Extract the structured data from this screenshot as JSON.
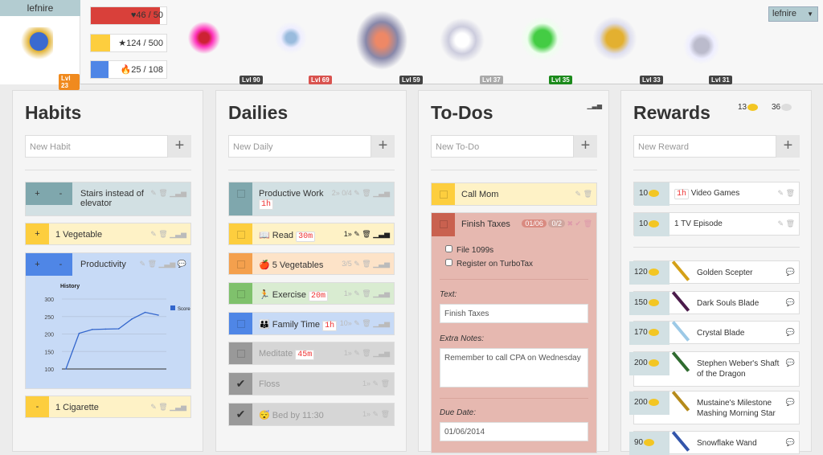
{
  "header": {
    "username": "lefnire",
    "level": "Lvl 23",
    "hp": "46 / 50",
    "hp_fraction": 0.92,
    "xp": "124 / 500",
    "xp_fraction": 0.248,
    "mp": "25 / 108",
    "mp_fraction": 0.23,
    "profile_menu": "lefnire",
    "party_levels": [
      "Lvl 90",
      "Lvl 69",
      "Lvl 59",
      "Lvl 37",
      "Lvl 35",
      "Lvl 33",
      "Lvl 31"
    ]
  },
  "habits": {
    "title": "Habits",
    "placeholder": "New Habit",
    "items": [
      {
        "text": "Stairs instead of elevator"
      },
      {
        "text": "1 Vegetable"
      },
      {
        "text": "Productivity"
      },
      {
        "text": "1 Cigarette"
      }
    ],
    "plus": "+",
    "minus": "-"
  },
  "chart_data": {
    "type": "line",
    "title": "History",
    "series": [
      {
        "name": "Score",
        "values": [
          100,
          202,
          213,
          214,
          215,
          243,
          262,
          254
        ]
      }
    ],
    "yticks": [
      "300",
      "250",
      "200",
      "150",
      "100"
    ],
    "ylim": [
      100,
      300
    ],
    "grid": true,
    "legend": "right"
  },
  "dailies": {
    "title": "Dailies",
    "placeholder": "New Daily",
    "items": [
      {
        "text": "Productive Work",
        "tag": "1h",
        "meta": "2» 0/4"
      },
      {
        "text": "📖 Read",
        "tag": "30m",
        "meta": "1»"
      },
      {
        "text": "🍎 5 Vegetables",
        "tag": "",
        "meta": "3/5"
      },
      {
        "text": "🏃 Exercise",
        "tag": "20m",
        "meta": "1»"
      },
      {
        "text": "👪 Family Time",
        "tag": "1h",
        "meta": "10»"
      },
      {
        "text": "Meditate",
        "tag": "45m",
        "meta": "1»"
      },
      {
        "text": "Floss",
        "tag": "",
        "meta": "1»"
      },
      {
        "text": "😴 Bed by 11:30",
        "tag": "",
        "meta": "1»"
      }
    ]
  },
  "todos": {
    "title": "To-Dos",
    "placeholder": "New To-Do",
    "items": [
      {
        "text": "Call Mom"
      },
      {
        "text": "Finish Taxes",
        "due_badge": "01/06",
        "checklist_badge": "0/2"
      }
    ],
    "checklist": [
      "File 1099s",
      "Register on TurboTax"
    ],
    "edit": {
      "text_label": "Text:",
      "text_value": "Finish Taxes",
      "notes_label": "Extra Notes:",
      "notes_value": "Remember to call CPA on Wednesday",
      "due_label": "Due Date:",
      "due_value": "01/06/2014"
    }
  },
  "rewards": {
    "title": "Rewards",
    "gold": "13",
    "silver": "36",
    "placeholder": "New Reward",
    "custom": [
      {
        "cost": "10",
        "tag": "1h",
        "text": "Video Games"
      },
      {
        "cost": "10",
        "tag": "",
        "text": "1 TV Episode"
      }
    ],
    "gear": [
      {
        "cost": "120",
        "text": "Golden Scepter",
        "color": "#d4a017"
      },
      {
        "cost": "150",
        "text": "Dark Souls Blade",
        "color": "#4b1b4b"
      },
      {
        "cost": "170",
        "text": "Crystal Blade",
        "color": "#9cc9e6"
      },
      {
        "cost": "200",
        "text": "Stephen Weber's Shaft of the Dragon",
        "color": "#2f6b2f"
      },
      {
        "cost": "200",
        "text": "Mustaine's Milestone Mashing Morning Star",
        "color": "#b58a1a"
      },
      {
        "cost": "90",
        "text": "Snowflake Wand",
        "color": "#3355aa"
      }
    ]
  },
  "colors": {
    "hp": "#d9403a",
    "xp": "#fdce3e",
    "mp": "#4f86e6",
    "teal": "#d2e0e3",
    "yellow": "#fef2c6",
    "orange": "#fde3c8",
    "green": "#d9ecd1",
    "blue": "#c7daf6",
    "grey": "#d6d6d6",
    "red": "#e6b8b0"
  }
}
